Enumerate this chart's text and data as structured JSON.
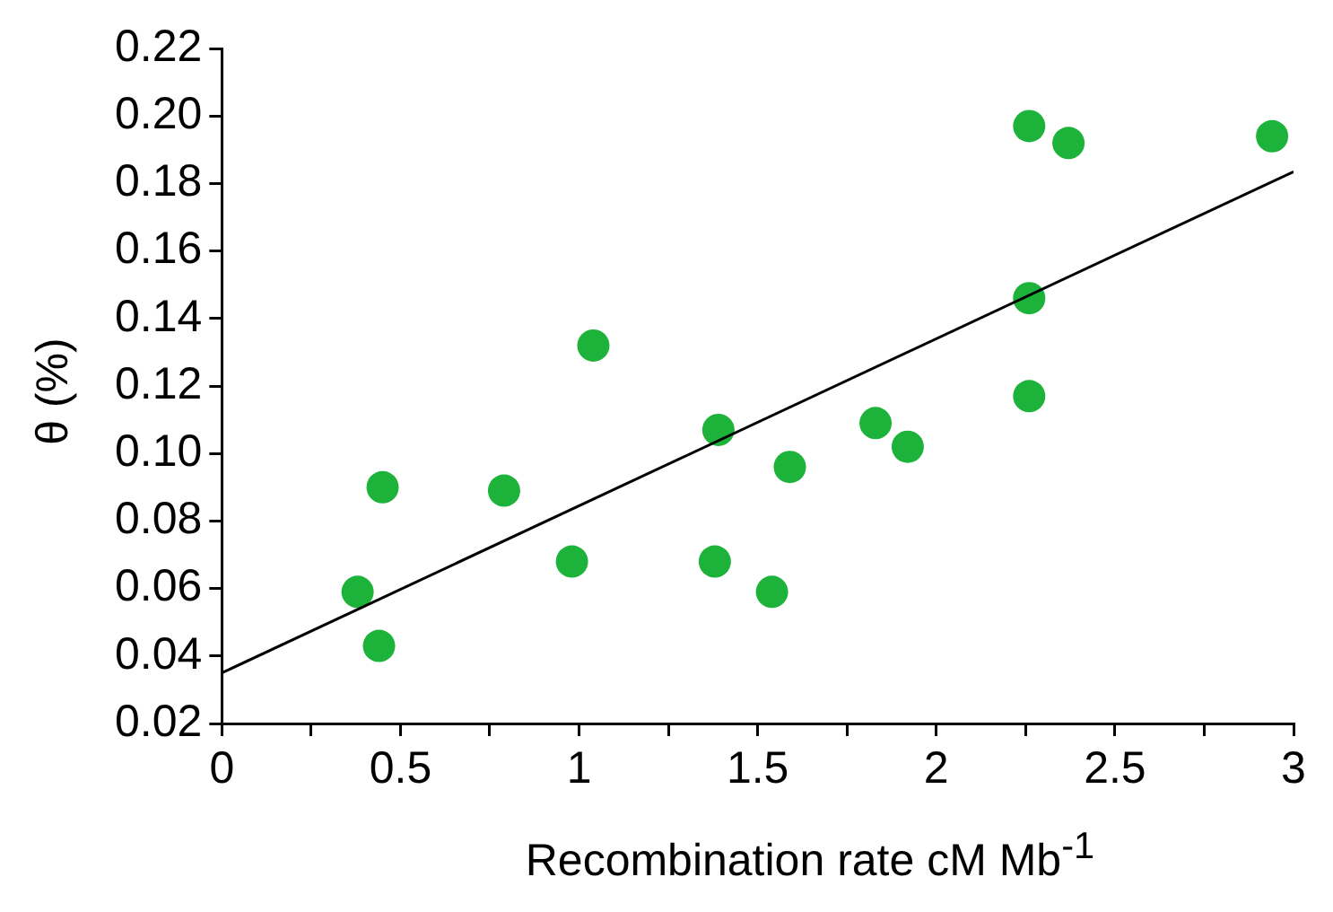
{
  "chart_data": {
    "type": "scatter",
    "xlabel": "Recombination rate cM Mb$^{-1}$",
    "ylabel": "θ (%)",
    "xlim": [
      0,
      3
    ],
    "ylim": [
      0.02,
      0.22
    ],
    "xticks": [
      0,
      {
        "value": 0.25,
        "label": null
      },
      0.5,
      {
        "value": 0.75,
        "label": null
      },
      1,
      {
        "value": 1.25,
        "label": null
      },
      1.5,
      {
        "value": 1.75,
        "label": null
      },
      2,
      {
        "value": 2.25,
        "label": null
      },
      2.5,
      {
        "value": 2.75,
        "label": null
      },
      3
    ],
    "yticks": [
      0.02,
      0.04,
      0.06,
      0.08,
      {
        "value": 0.1,
        "label": "0.10"
      },
      0.12,
      0.14,
      0.16,
      0.18,
      {
        "value": 0.2,
        "label": "0.20"
      },
      0.22
    ],
    "grid": false,
    "legend": false,
    "marker": "circle",
    "series": [
      {
        "type": "scatter",
        "color": "#1db33a",
        "x": [
          0.38,
          0.44,
          0.45,
          0.79,
          0.98,
          1.04,
          1.39,
          1.38,
          1.54,
          1.59,
          1.83,
          1.92,
          2.26,
          2.26,
          2.26,
          2.37,
          2.94
        ],
        "values": [
          0.059,
          0.043,
          0.09,
          0.089,
          0.068,
          0.132,
          0.107,
          0.068,
          0.059,
          0.096,
          0.109,
          0.102,
          0.146,
          0.117,
          0.197,
          0.192,
          0.194
        ]
      },
      {
        "type": "line",
        "color": "#000000",
        "marker": "none",
        "line_style": "solid",
        "x": [
          0,
          3
        ],
        "values": [
          0.035,
          0.1835
        ]
      }
    ]
  }
}
